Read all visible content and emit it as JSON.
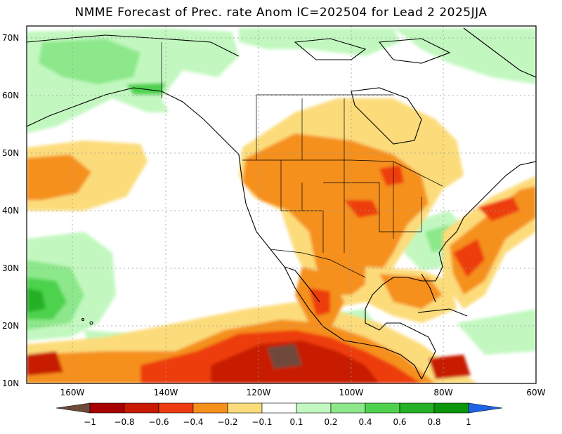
{
  "title": "NMME Forecast of Prec. rate Anom IC=202504 for Lead 2 2025JJA",
  "lat_labels": [
    "10N",
    "20N",
    "30N",
    "40N",
    "50N",
    "60N",
    "70N"
  ],
  "lon_labels": [
    "160W",
    "140W",
    "120W",
    "100W",
    "80W",
    "60W"
  ],
  "colorbar": {
    "labels": [
      "−1",
      "−0.8",
      "−0.6",
      "−0.4",
      "−0.2",
      "−0.1",
      "0.1",
      "0.2",
      "0.4",
      "0.6",
      "0.8",
      "1"
    ],
    "colors": [
      "#6e4a3a",
      "#a80000",
      "#c81a00",
      "#ee3c10",
      "#f5901a",
      "#fcdc7a",
      "#ffffff",
      "#c2f8c0",
      "#8ce88a",
      "#4ed24e",
      "#26b026",
      "#0a960a",
      "#1e64e6"
    ]
  },
  "colors": {
    "land_outline": "#000000",
    "grid": "#9a9a9a",
    "background": "#ffffff"
  }
}
